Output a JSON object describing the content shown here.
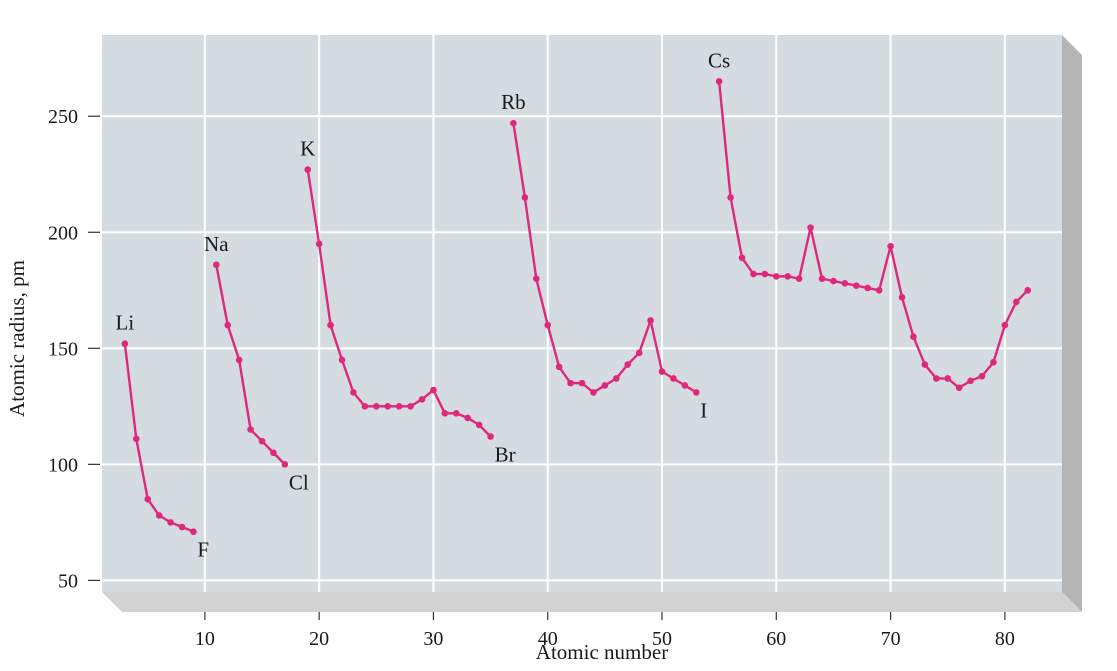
{
  "chart_data": {
    "type": "line",
    "title": "",
    "xlabel": "Atomic number",
    "ylabel": "Atomic radius, pm",
    "xlim": [
      1,
      85
    ],
    "ylim": [
      45,
      285
    ],
    "xticks": [
      10,
      20,
      30,
      40,
      50,
      60,
      70,
      80
    ],
    "yticks": [
      50,
      100,
      150,
      200,
      250
    ],
    "grid": true,
    "colors": {
      "line": "#e0287a",
      "plot_background": "#d4dce1",
      "grid": "#ffffff",
      "frame_side": "#b5b5b5",
      "frame_bottom": "#d2d2d2"
    },
    "series": [
      {
        "x": [
          3,
          4,
          5,
          6,
          7,
          8,
          9
        ],
        "y": [
          152,
          111,
          85,
          78,
          75,
          73,
          71
        ],
        "start_label": "Li",
        "end_label": "F"
      },
      {
        "x": [
          11,
          12,
          13,
          14,
          15,
          16,
          17
        ],
        "y": [
          186,
          160,
          145,
          115,
          110,
          105,
          100
        ],
        "start_label": "Na",
        "end_label": "Cl"
      },
      {
        "x": [
          19,
          20,
          21,
          22,
          23,
          24,
          25,
          26,
          27,
          28,
          29,
          30,
          31,
          32,
          33,
          34,
          35
        ],
        "y": [
          227,
          195,
          160,
          145,
          131,
          125,
          125,
          125,
          125,
          125,
          128,
          132,
          122,
          122,
          120,
          117,
          112
        ],
        "start_label": "K",
        "end_label": "Br"
      },
      {
        "x": [
          37,
          38,
          39,
          40,
          41,
          42,
          43,
          44,
          45,
          46,
          47,
          48,
          49,
          50,
          51,
          52,
          53
        ],
        "y": [
          247,
          215,
          180,
          160,
          142,
          135,
          135,
          131,
          134,
          137,
          143,
          148,
          162,
          140,
          137,
          134,
          131
        ],
        "start_label": "Rb",
        "end_label": "I"
      },
      {
        "x": [
          55,
          56,
          57,
          58,
          59,
          60,
          61,
          62,
          63,
          64,
          65,
          66,
          67,
          68,
          69,
          70,
          71,
          72,
          73,
          74,
          75,
          76,
          77,
          78,
          79,
          80,
          81,
          82
        ],
        "y": [
          265,
          215,
          189,
          182,
          182,
          181,
          181,
          180,
          202,
          180,
          179,
          178,
          177,
          176,
          175,
          194,
          172,
          155,
          143,
          137,
          137,
          133,
          136,
          138,
          144,
          160,
          170,
          175
        ],
        "start_label": "Cs",
        "end_label": ""
      }
    ]
  }
}
